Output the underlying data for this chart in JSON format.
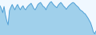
{
  "values": [
    72,
    65,
    55,
    70,
    50,
    35,
    25,
    60,
    68,
    75,
    68,
    62,
    70,
    75,
    68,
    62,
    68,
    72,
    65,
    62,
    68,
    72,
    75,
    78,
    72,
    65,
    62,
    68,
    75,
    78,
    80,
    75,
    70,
    68,
    62,
    70,
    75,
    80,
    82,
    77,
    73,
    70,
    67,
    73,
    77,
    80,
    76,
    71,
    68,
    63,
    68,
    72,
    75,
    78,
    80,
    78,
    74,
    71,
    68,
    63,
    60,
    58,
    54,
    52,
    47,
    42,
    36,
    30,
    20,
    8,
    3,
    10
  ],
  "line_color": "#4d9fd6",
  "fill_color": "#92c9e8",
  "background_color": "#f0f8ff",
  "ylim_min": 0,
  "ylim_max": 88
}
